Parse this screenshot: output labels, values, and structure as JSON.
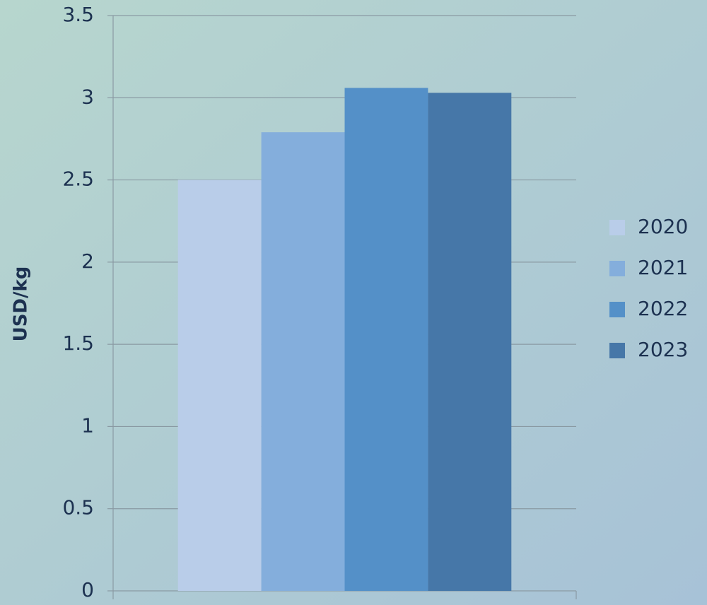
{
  "chart_data": {
    "type": "bar",
    "y_label": "USD/kg",
    "categories": [
      null
    ],
    "series": [
      {
        "name": "2020",
        "color": "#b9cde9",
        "values": [
          2.5
        ]
      },
      {
        "name": "2021",
        "color": "#84aedc",
        "values": [
          2.79
        ]
      },
      {
        "name": "2022",
        "color": "#5490c8",
        "values": [
          3.06
        ]
      },
      {
        "name": "2023",
        "color": "#4677a8",
        "values": [
          3.03
        ]
      }
    ],
    "ylim": [
      0,
      3.5
    ],
    "yticks": [
      0,
      0.5,
      1,
      1.5,
      2,
      2.5,
      3,
      3.5
    ],
    "grid": true,
    "legend": "right"
  }
}
